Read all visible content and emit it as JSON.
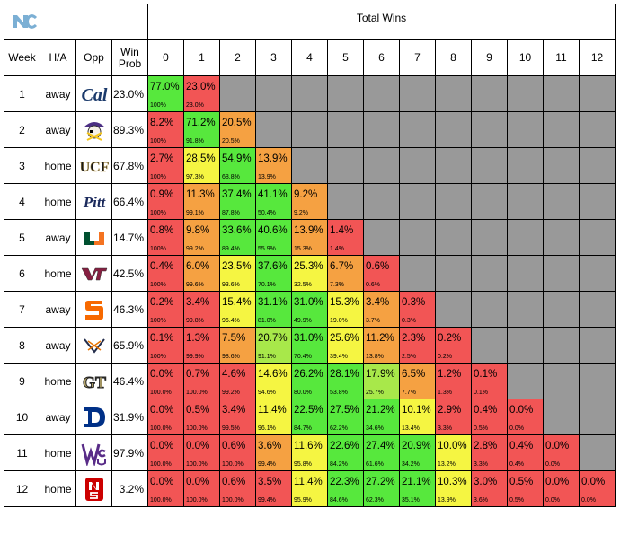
{
  "header": {
    "title": "Total Wins"
  },
  "columns": {
    "week": "Week",
    "ha": "H/A",
    "opp": "Opp",
    "winprob": "Win\nProb"
  },
  "win_totals": [
    "0",
    "1",
    "2",
    "3",
    "4",
    "5",
    "6",
    "7",
    "8",
    "9",
    "10",
    "11",
    "12"
  ],
  "colors": {
    "green": "#57e83d",
    "lightgreen": "#a8e84a",
    "yellow": "#f5f542",
    "orange": "#f5a142",
    "red": "#f25555",
    "gray": "#999999",
    "unc": "#7bafd4"
  },
  "rows": [
    {
      "week": "1",
      "ha": "away",
      "opp_icon": "cal-logo-icon",
      "winprob": "23.0%",
      "probs": [
        "77.0%",
        "23.0%"
      ],
      "cum": [
        "100%",
        "23.0%"
      ],
      "shade": [
        "g",
        "r"
      ]
    },
    {
      "week": "2",
      "ha": "away",
      "opp_icon": "ecu-pirate-logo-icon",
      "winprob": "89.3%",
      "probs": [
        "8.2%",
        "71.2%",
        "20.5%"
      ],
      "cum": [
        "100%",
        "91.8%",
        "20.5%"
      ],
      "shade": [
        "r",
        "g",
        "o"
      ]
    },
    {
      "week": "3",
      "ha": "home",
      "opp_icon": "ucf-logo-icon",
      "winprob": "67.8%",
      "probs": [
        "2.7%",
        "28.5%",
        "54.9%",
        "13.9%"
      ],
      "cum": [
        "100%",
        "97.3%",
        "68.8%",
        "13.9%"
      ],
      "shade": [
        "r",
        "y",
        "g",
        "o"
      ]
    },
    {
      "week": "4",
      "ha": "home",
      "opp_icon": "pitt-logo-icon",
      "winprob": "66.4%",
      "probs": [
        "0.9%",
        "11.3%",
        "37.4%",
        "41.1%",
        "9.2%"
      ],
      "cum": [
        "100%",
        "99.1%",
        "87.8%",
        "50.4%",
        "9.2%"
      ],
      "shade": [
        "r",
        "o",
        "g",
        "g",
        "o"
      ]
    },
    {
      "week": "5",
      "ha": "away",
      "opp_icon": "miami-u-logo-icon",
      "winprob": "14.7%",
      "probs": [
        "0.8%",
        "9.8%",
        "33.6%",
        "40.6%",
        "13.9%",
        "1.4%"
      ],
      "cum": [
        "100%",
        "99.2%",
        "89.4%",
        "55.9%",
        "15.3%",
        "1.4%"
      ],
      "shade": [
        "r",
        "o",
        "g",
        "g",
        "o",
        "r"
      ]
    },
    {
      "week": "6",
      "ha": "home",
      "opp_icon": "virginia-tech-logo-icon",
      "winprob": "42.5%",
      "probs": [
        "0.4%",
        "6.0%",
        "23.5%",
        "37.6%",
        "25.3%",
        "6.7%",
        "0.6%"
      ],
      "cum": [
        "100%",
        "99.6%",
        "93.6%",
        "70.1%",
        "32.5%",
        "7.3%",
        "0.6%"
      ],
      "shade": [
        "r",
        "o",
        "y",
        "g",
        "y",
        "o",
        "r"
      ]
    },
    {
      "week": "7",
      "ha": "away",
      "opp_icon": "syracuse-logo-icon",
      "winprob": "46.3%",
      "probs": [
        "0.2%",
        "3.4%",
        "15.4%",
        "31.1%",
        "31.0%",
        "15.3%",
        "3.4%",
        "0.3%"
      ],
      "cum": [
        "100%",
        "99.8%",
        "96.4%",
        "81.0%",
        "49.9%",
        "19.0%",
        "3.7%",
        "0.3%"
      ],
      "shade": [
        "r",
        "r",
        "y",
        "g",
        "g",
        "y",
        "o",
        "r"
      ]
    },
    {
      "week": "8",
      "ha": "away",
      "opp_icon": "virginia-logo-icon",
      "winprob": "65.9%",
      "probs": [
        "0.1%",
        "1.3%",
        "7.5%",
        "20.7%",
        "31.0%",
        "25.6%",
        "11.2%",
        "2.3%",
        "0.2%"
      ],
      "cum": [
        "100%",
        "99.9%",
        "98.6%",
        "91.1%",
        "70.4%",
        "39.4%",
        "13.8%",
        "2.5%",
        "0.2%"
      ],
      "shade": [
        "r",
        "r",
        "o",
        "l",
        "g",
        "y",
        "o",
        "r",
        "r"
      ]
    },
    {
      "week": "9",
      "ha": "home",
      "opp_icon": "georgia-tech-logo-icon",
      "winprob": "46.4%",
      "probs": [
        "0.0%",
        "0.7%",
        "4.6%",
        "14.6%",
        "26.2%",
        "28.1%",
        "17.9%",
        "6.5%",
        "1.2%",
        "0.1%"
      ],
      "cum": [
        "100.0%",
        "100.0%",
        "99.2%",
        "94.6%",
        "80.0%",
        "53.8%",
        "25.7%",
        "7.7%",
        "1.3%",
        "0.1%"
      ],
      "shade": [
        "r",
        "r",
        "r",
        "y",
        "g",
        "g",
        "l",
        "o",
        "r",
        "r"
      ]
    },
    {
      "week": "10",
      "ha": "away",
      "opp_icon": "duke-logo-icon",
      "winprob": "31.9%",
      "probs": [
        "0.0%",
        "0.5%",
        "3.4%",
        "11.4%",
        "22.5%",
        "27.5%",
        "21.2%",
        "10.1%",
        "2.9%",
        "0.4%",
        "0.0%"
      ],
      "cum": [
        "100.0%",
        "100.0%",
        "99.5%",
        "96.1%",
        "84.7%",
        "62.2%",
        "34.6%",
        "13.4%",
        "3.3%",
        "0.5%",
        "0.0%"
      ],
      "shade": [
        "r",
        "r",
        "r",
        "y",
        "g",
        "g",
        "g",
        "y",
        "r",
        "r",
        "r"
      ]
    },
    {
      "week": "11",
      "ha": "home",
      "opp_icon": "wcu-logo-icon",
      "winprob": "97.9%",
      "probs": [
        "0.0%",
        "0.0%",
        "0.6%",
        "3.6%",
        "11.6%",
        "22.6%",
        "27.4%",
        "20.9%",
        "10.0%",
        "2.8%",
        "0.4%",
        "0.0%"
      ],
      "cum": [
        "100.0%",
        "100.0%",
        "100.0%",
        "99.4%",
        "95.8%",
        "84.2%",
        "61.6%",
        "34.2%",
        "13.2%",
        "3.3%",
        "0.4%",
        "0.0%"
      ],
      "shade": [
        "r",
        "r",
        "r",
        "o",
        "y",
        "g",
        "g",
        "g",
        "y",
        "r",
        "r",
        "r"
      ]
    },
    {
      "week": "12",
      "ha": "home",
      "opp_icon": "nc-state-logo-icon",
      "winprob": "3.2%",
      "probs": [
        "0.0%",
        "0.0%",
        "0.6%",
        "3.5%",
        "11.4%",
        "22.3%",
        "27.2%",
        "21.1%",
        "10.3%",
        "3.0%",
        "0.5%",
        "0.0%",
        "0.0%"
      ],
      "cum": [
        "100.0%",
        "100.0%",
        "100.0%",
        "99.4%",
        "95.9%",
        "84.6%",
        "62.3%",
        "35.1%",
        "13.9%",
        "3.6%",
        "0.5%",
        "0.0%",
        "0.0%"
      ],
      "shade": [
        "r",
        "r",
        "r",
        "r",
        "y",
        "g",
        "g",
        "g",
        "y",
        "r",
        "r",
        "r",
        "r"
      ]
    }
  ]
}
